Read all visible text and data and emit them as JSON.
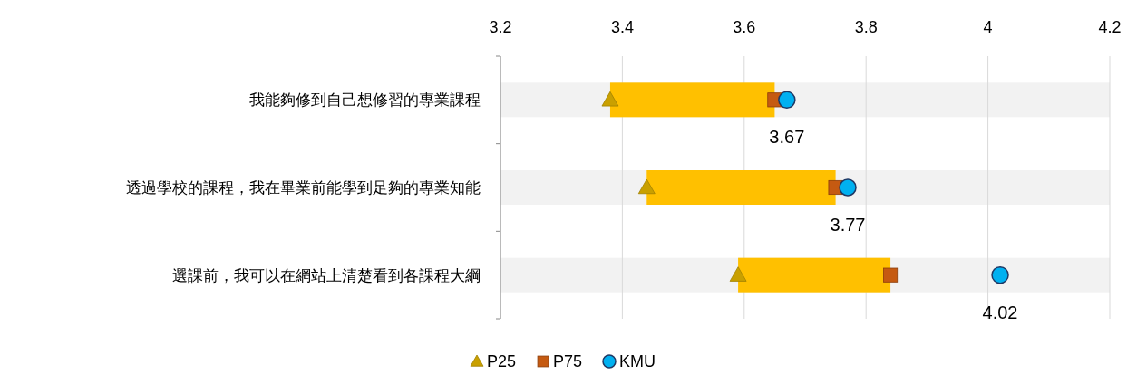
{
  "chart_data": {
    "type": "bar",
    "orientation": "horizontal",
    "categories": [
      "我能夠修到自己想修習的專業課程",
      "透過學校的課程，我在畢業前能學到足夠的專業知能",
      "選課前，我可以在網站上清楚看到各課程大綱"
    ],
    "xlim": [
      3.2,
      4.2
    ],
    "xticks": [
      3.2,
      3.4,
      3.6,
      3.8,
      4,
      4.2
    ],
    "grid": "x",
    "legend": "bottom",
    "series": [
      {
        "type": "bar",
        "color": "#ffc000",
        "base": [
          3.38,
          3.44,
          3.59
        ],
        "values": [
          0.27,
          0.31,
          0.25
        ]
      },
      {
        "type": "scatter",
        "name": "P25",
        "marker": "triangle",
        "color": "#c9a000",
        "values": [
          3.38,
          3.44,
          3.59
        ]
      },
      {
        "type": "scatter",
        "name": "P75",
        "marker": "square",
        "color": "#c55a11",
        "values": [
          3.65,
          3.75,
          3.84
        ]
      },
      {
        "type": "scatter",
        "name": "KMU",
        "marker": "circle",
        "color": "#00b0f0",
        "values": [
          3.67,
          3.77,
          4.02
        ],
        "value_labels": [
          "3.67",
          "3.77",
          "4.02"
        ]
      }
    ]
  }
}
